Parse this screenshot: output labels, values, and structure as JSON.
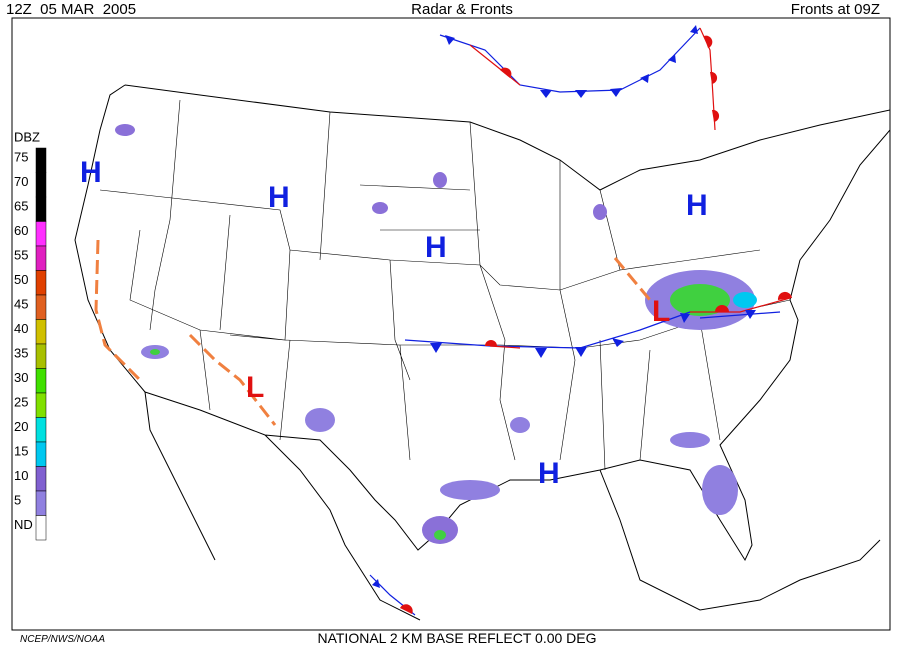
{
  "header": {
    "valid_time": "12Z  05 MAR  2005",
    "title": "Radar & Fronts",
    "fronts_time": "Fronts at 09Z"
  },
  "legend": {
    "title": "DBZ",
    "levels": [
      {
        "value": 75,
        "color": "#000000"
      },
      {
        "value": 70,
        "color": "#000000"
      },
      {
        "value": 65,
        "color": "#000000"
      },
      {
        "value": 60,
        "color": "#ff30ff"
      },
      {
        "value": 55,
        "color": "#e020c0"
      },
      {
        "value": 50,
        "color": "#e04000"
      },
      {
        "value": 45,
        "color": "#e06020"
      },
      {
        "value": 40,
        "color": "#d0c000"
      },
      {
        "value": 35,
        "color": "#a8c000"
      },
      {
        "value": 30,
        "color": "#40e000"
      },
      {
        "value": 25,
        "color": "#80e000"
      },
      {
        "value": 20,
        "color": "#00e0e0"
      },
      {
        "value": 15,
        "color": "#00c8f0"
      },
      {
        "value": 10,
        "color": "#8060d0"
      },
      {
        "value": 5,
        "color": "#9080e0"
      }
    ],
    "no_data": {
      "label": "ND",
      "color": "#ffffff"
    }
  },
  "pressure_centers": [
    {
      "label": "H"
    },
    {
      "label": "H"
    },
    {
      "label": "H"
    },
    {
      "label": "H"
    },
    {
      "label": "H"
    },
    {
      "label": "L"
    },
    {
      "label": "L"
    }
  ],
  "footer": {
    "credit": "NCEP/NWS/NOAA",
    "product": "NATIONAL 2 KM BASE REFLECT 0.00 DEG"
  }
}
